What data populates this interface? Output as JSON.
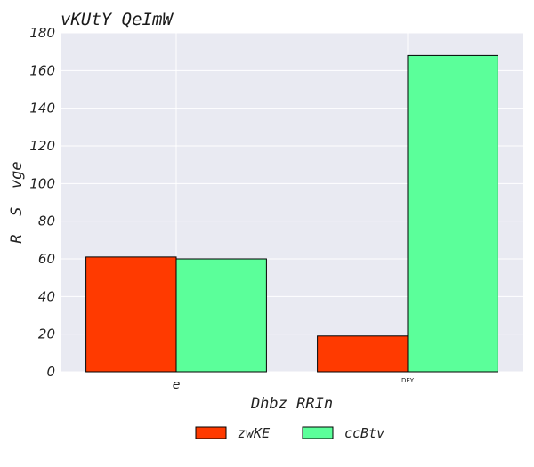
{
  "chart_data": {
    "type": "bar",
    "title": "vKUtY  QeImW",
    "xlabel": "Dhbz RRIn",
    "ylabel": "R  S  vge",
    "categories": [
      "e",
      "DEY"
    ],
    "series": [
      {
        "name": "zwKE",
        "values": [
          61,
          19
        ],
        "color": "#ff3a00"
      },
      {
        "name": "ccBtv",
        "values": [
          60,
          168
        ],
        "color": "#5bff9a"
      }
    ],
    "ylim": [
      0,
      180
    ],
    "yticks": [
      0,
      20,
      40,
      60,
      80,
      100,
      120,
      140,
      160,
      180
    ],
    "grid": true,
    "legend_position": "bottom-center",
    "plot_background": "#e9eaf2",
    "grid_color": "#ffffff"
  }
}
